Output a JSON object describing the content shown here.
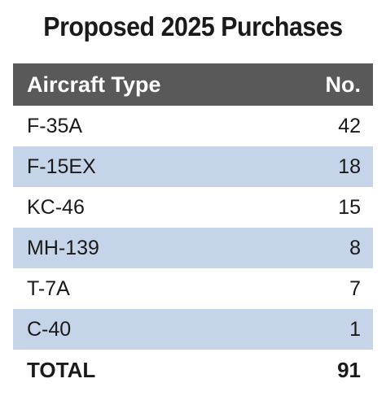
{
  "chart_data": {
    "type": "table",
    "title": "Proposed 2025 Purchases",
    "columns": [
      "Aircraft Type",
      "No."
    ],
    "rows": [
      {
        "type": "F-35A",
        "count": 42
      },
      {
        "type": "F-15EX",
        "count": 18
      },
      {
        "type": "KC-46",
        "count": 15
      },
      {
        "type": "MH-139",
        "count": 8
      },
      {
        "type": "T-7A",
        "count": 7
      },
      {
        "type": "C-40",
        "count": 1
      }
    ],
    "total": {
      "label": "TOTAL",
      "count": 91
    },
    "colors": {
      "header_bg": "#595959",
      "header_text": "#ffffff",
      "stripe": "#c6d4ea"
    }
  }
}
